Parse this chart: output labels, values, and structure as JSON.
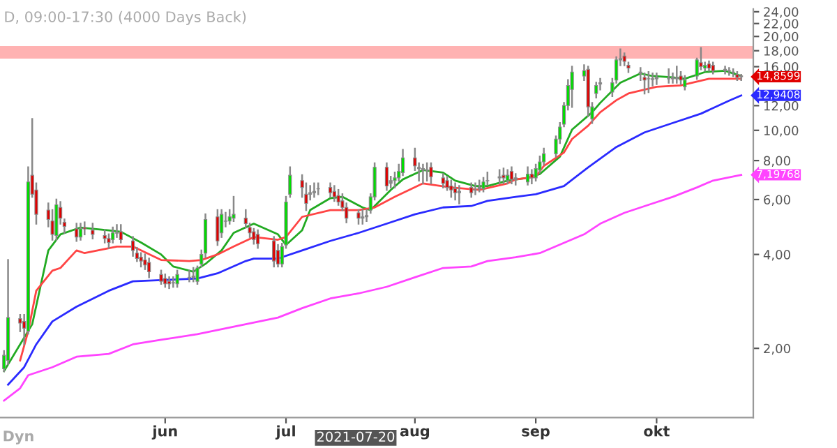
{
  "chart_data": {
    "type": "candlestick",
    "title": "D, 09:00-17:30 (4000 Days Back)",
    "log": true,
    "colors": [
      "#00dd00",
      "#00dd00",
      "#e00000",
      "#e00000",
      "#00dd00",
      "#e00000",
      "#e00000",
      "#e00000",
      "#e00000",
      "#00dd00",
      "#e00000",
      "#e00000",
      "#e00000",
      "#00dd00",
      "#e00000",
      "#e00000",
      "#e00000",
      "#e00000",
      "#00dd00",
      "#888888",
      "#e00000",
      "#e00000",
      "#e00000",
      "#e00000",
      "#e00000",
      "#e00000",
      "#e00000",
      "#e00000",
      "#e00000",
      "#888888",
      "#00dd00",
      "#888888",
      "#888888",
      "#00dd00",
      "#00dd00",
      "#00dd00",
      "#e00000",
      "#00dd00",
      "#888888",
      "#00dd00",
      "#00dd00",
      "#e00000",
      "#e00000",
      "#e00000",
      "#e00000",
      "#e00000",
      "#e00000",
      "#00dd00",
      "#00dd00",
      "#00dd00",
      "#e00000",
      "#e00000",
      "#888888",
      "#888888",
      "#888888",
      "#e00000",
      "#e00000",
      "#e00000",
      "#e00000",
      "#e00000",
      "#e00000",
      "#888888",
      "#888888",
      "#00dd00",
      "#00dd00",
      "#e00000",
      "#888888",
      "#00dd00",
      "#00dd00",
      "#00dd00",
      "#e00000",
      "#888888",
      "#888888",
      "#888888",
      "#e00000",
      "#e00000",
      "#e00000",
      "#e00000",
      "#e00000",
      "#888888",
      "#e00000",
      "#888888",
      "#888888",
      "#00dd00",
      "#888888",
      "#888888",
      "#e00000",
      "#00dd00",
      "#e00000",
      "#888888",
      "#00dd00",
      "#e00000",
      "#00dd00",
      "#00dd00",
      "#00dd00",
      "#00dd00",
      "#00dd00",
      "#00dd00",
      "#00dd00",
      "#00dd00",
      "#00dd00",
      "#e00000",
      "#00dd00",
      "#00dd00",
      "#888888",
      "#00dd00",
      "#00dd00",
      "#888888",
      "#e00000",
      "#e00000",
      "#888888",
      "#e00000",
      "#888888",
      "#888888",
      "#888888",
      "#888888",
      "#888888",
      "#888888",
      "#e00000",
      "#00dd00",
      "#00dd00",
      "#e00000",
      "#00dd00",
      "#e00000",
      "#e00000",
      "#888888",
      "#888888",
      "#888888",
      "#e00000",
      "#e00000"
    ],
    "xlim": [
      "2021-04-21",
      "2021-10-25"
    ],
    "x": [
      "2021-04-22",
      "2021-04-23",
      "2021-04-26",
      "2021-04-27",
      "2021-04-28",
      "2021-04-29",
      "2021-04-30",
      "2021-05-03",
      "2021-05-04",
      "2021-05-05",
      "2021-05-06",
      "2021-05-07",
      "2021-05-10",
      "2021-05-11",
      "2021-05-12",
      "2021-05-14",
      "2021-05-17",
      "2021-05-18",
      "2021-05-19",
      "2021-05-20",
      "2021-05-21",
      "2021-05-24",
      "2021-05-25",
      "2021-05-26",
      "2021-05-27",
      "2021-05-28",
      "2021-05-31",
      "2021-06-01",
      "2021-06-02",
      "2021-06-03",
      "2021-06-04",
      "2021-06-07",
      "2021-06-08",
      "2021-06-09",
      "2021-06-10",
      "2021-06-11",
      "2021-06-14",
      "2021-06-15",
      "2021-06-16",
      "2021-06-17",
      "2021-06-18",
      "2021-06-21",
      "2021-06-22",
      "2021-06-23",
      "2021-06-24",
      "2021-06-28",
      "2021-06-29",
      "2021-06-30",
      "2021-07-01",
      "2021-07-02",
      "2021-07-05",
      "2021-07-06",
      "2021-07-07",
      "2021-07-08",
      "2021-07-09",
      "2021-07-12",
      "2021-07-13",
      "2021-07-14",
      "2021-07-15",
      "2021-07-16",
      "2021-07-19",
      "2021-07-20",
      "2021-07-21",
      "2021-07-22",
      "2021-07-23",
      "2021-07-26",
      "2021-07-27",
      "2021-07-28",
      "2021-07-29",
      "2021-07-30",
      "2021-08-02",
      "2021-08-03",
      "2021-08-04",
      "2021-08-05",
      "2021-08-06",
      "2021-08-09",
      "2021-08-10",
      "2021-08-11",
      "2021-08-12",
      "2021-08-13",
      "2021-08-16",
      "2021-08-17",
      "2021-08-18",
      "2021-08-19",
      "2021-08-20",
      "2021-08-23",
      "2021-08-24",
      "2021-08-25",
      "2021-08-26",
      "2021-08-27",
      "2021-08-30",
      "2021-08-31",
      "2021-09-01",
      "2021-09-02",
      "2021-09-03",
      "2021-09-06",
      "2021-09-07",
      "2021-09-08",
      "2021-09-09",
      "2021-09-10",
      "2021-09-13",
      "2021-09-14",
      "2021-09-15",
      "2021-09-16",
      "2021-09-17",
      "2021-09-20",
      "2021-09-21",
      "2021-09-22",
      "2021-09-23",
      "2021-09-24",
      "2021-09-27",
      "2021-09-28",
      "2021-09-29",
      "2021-09-30",
      "2021-10-01",
      "2021-10-04",
      "2021-10-05",
      "2021-10-06",
      "2021-10-07",
      "2021-10-08",
      "2021-10-11",
      "2021-10-12",
      "2021-10-13",
      "2021-10-14",
      "2021-10-15",
      "2021-10-18",
      "2021-10-19",
      "2021-10-20",
      "2021-10-21",
      "2021-10-22"
    ],
    "ohlc": [
      [
        1.72,
        1.96,
        1.69,
        1.9
      ],
      [
        1.83,
        3.84,
        1.78,
        2.51
      ],
      [
        2.49,
        2.56,
        2.27,
        2.41
      ],
      [
        2.44,
        2.56,
        2.06,
        2.32
      ],
      [
        2.27,
        7.61,
        2.23,
        6.83
      ],
      [
        7.18,
        10.88,
        6.12,
        6.24
      ],
      [
        6.44,
        6.76,
        5.02,
        5.38
      ],
      [
        5.55,
        5.83,
        4.92,
        5.18
      ],
      [
        5.12,
        5.55,
        4.46,
        4.64
      ],
      [
        4.6,
        6.0,
        4.46,
        5.77
      ],
      [
        5.66,
        5.89,
        5.02,
        5.23
      ],
      [
        5.07,
        5.18,
        4.69,
        4.92
      ],
      [
        4.83,
        5.02,
        4.42,
        4.55
      ],
      [
        4.55,
        5.02,
        4.46,
        4.83
      ],
      [
        4.88,
        5.07,
        4.64,
        4.83
      ],
      [
        4.78,
        5.02,
        4.5,
        4.64
      ],
      [
        4.6,
        4.78,
        4.37,
        4.5
      ],
      [
        4.5,
        4.64,
        4.2,
        4.37
      ],
      [
        4.46,
        4.88,
        4.37,
        4.69
      ],
      [
        4.69,
        4.97,
        4.55,
        4.68
      ],
      [
        4.73,
        4.97,
        4.37,
        4.46
      ],
      [
        4.42,
        4.55,
        3.96,
        4.12
      ],
      [
        4.04,
        4.2,
        3.81,
        3.88
      ],
      [
        3.92,
        4.04,
        3.66,
        3.81
      ],
      [
        3.84,
        4.0,
        3.59,
        3.7
      ],
      [
        3.77,
        3.88,
        3.38,
        3.52
      ],
      [
        3.45,
        3.55,
        3.22,
        3.28
      ],
      [
        3.35,
        3.45,
        3.15,
        3.22
      ],
      [
        3.28,
        3.38,
        3.12,
        3.22
      ],
      [
        3.25,
        3.38,
        3.15,
        3.24
      ],
      [
        3.22,
        3.55,
        3.15,
        3.45
      ],
      [
        3.38,
        3.55,
        3.28,
        3.37
      ],
      [
        3.38,
        3.62,
        3.28,
        3.41
      ],
      [
        3.28,
        3.66,
        3.22,
        3.62
      ],
      [
        3.73,
        4.12,
        3.66,
        4.0
      ],
      [
        4.04,
        5.38,
        3.92,
        5.18
      ],
      [
        5.28,
        5.55,
        4.29,
        4.42
      ],
      [
        4.69,
        5.55,
        4.55,
        5.38
      ],
      [
        5.12,
        5.44,
        4.92,
        5.11
      ],
      [
        5.12,
        5.55,
        5.02,
        5.28
      ],
      [
        5.23,
        6.12,
        5.12,
        5.38
      ],
      [
        5.23,
        5.55,
        4.88,
        5.02
      ],
      [
        4.88,
        5.02,
        4.55,
        4.69
      ],
      [
        4.73,
        4.83,
        4.33,
        4.46
      ],
      [
        4.64,
        4.78,
        4.2,
        4.33
      ],
      [
        4.42,
        4.55,
        3.66,
        3.81
      ],
      [
        4.12,
        4.29,
        3.66,
        3.73
      ],
      [
        3.73,
        4.33,
        3.66,
        4.24
      ],
      [
        4.29,
        6.12,
        4.2,
        5.89
      ],
      [
        6.24,
        7.61,
        6.12,
        7.18
      ],
      [
        6.9,
        7.18,
        6.12,
        6.56
      ],
      [
        6.24,
        6.76,
        5.55,
        5.83
      ],
      [
        6.31,
        6.63,
        6.0,
        6.24
      ],
      [
        6.31,
        6.76,
        6.12,
        6.37
      ],
      [
        6.5,
        6.76,
        6.24,
        6.49
      ],
      [
        6.56,
        6.76,
        6.12,
        6.31
      ],
      [
        6.37,
        6.63,
        5.94,
        6.12
      ],
      [
        6.18,
        6.44,
        5.77,
        5.89
      ],
      [
        5.94,
        6.24,
        5.55,
        5.66
      ],
      [
        5.66,
        5.83,
        5.07,
        5.23
      ],
      [
        5.44,
        5.55,
        5.02,
        5.23
      ],
      [
        5.23,
        5.55,
        5.02,
        5.28
      ],
      [
        5.28,
        5.55,
        5.12,
        5.33
      ],
      [
        5.55,
        6.24,
        5.44,
        6.12
      ],
      [
        6.12,
        7.84,
        6.0,
        7.61
      ],
      [
        7.61,
        7.84,
        6.44,
        6.63
      ],
      [
        6.76,
        7.1,
        6.56,
        6.9
      ],
      [
        6.9,
        7.32,
        6.56,
        7.04
      ],
      [
        7.04,
        7.76,
        6.9,
        7.39
      ],
      [
        7.32,
        8.66,
        7.18,
        8.16
      ],
      [
        8.16,
        8.74,
        7.46,
        7.69
      ],
      [
        7.54,
        7.84,
        6.9,
        7.61
      ],
      [
        7.46,
        7.76,
        6.76,
        7.54
      ],
      [
        7.46,
        7.84,
        6.9,
        7.45
      ],
      [
        7.61,
        7.84,
        6.76,
        7.1
      ],
      [
        7.04,
        7.24,
        6.56,
        6.76
      ],
      [
        6.9,
        7.1,
        6.44,
        6.56
      ],
      [
        6.63,
        6.9,
        6.12,
        6.44
      ],
      [
        6.5,
        6.76,
        6.0,
        6.31
      ],
      [
        6.31,
        6.63,
        5.83,
        6.37
      ],
      [
        6.56,
        6.76,
        6.12,
        6.31
      ],
      [
        6.44,
        6.76,
        6.24,
        6.43
      ],
      [
        6.56,
        6.9,
        6.37,
        6.5
      ],
      [
        6.5,
        7.04,
        6.37,
        6.83
      ],
      [
        6.9,
        7.32,
        6.7,
        6.89
      ],
      [
        7.04,
        7.46,
        6.76,
        7.1
      ],
      [
        7.18,
        7.54,
        6.76,
        7.04
      ],
      [
        6.9,
        7.46,
        6.76,
        7.18
      ],
      [
        7.39,
        7.61,
        6.76,
        6.96
      ],
      [
        6.96,
        7.24,
        6.7,
        7.04
      ],
      [
        6.83,
        7.61,
        6.7,
        7.24
      ],
      [
        7.24,
        7.46,
        6.76,
        7.04
      ],
      [
        7.04,
        7.76,
        6.9,
        7.54
      ],
      [
        7.46,
        8.24,
        7.32,
        7.92
      ],
      [
        7.92,
        8.74,
        7.76,
        8.41
      ],
      [
        8.41,
        9.56,
        8.24,
        9.38
      ],
      [
        9.38,
        10.56,
        9.1,
        10.25
      ],
      [
        10.46,
        12.25,
        10.3,
        12.01
      ],
      [
        12.01,
        14.49,
        11.66,
        13.93
      ],
      [
        13.52,
        16.0,
        11.89,
        15.38
      ],
      [
        14.93,
        16.16,
        14.49,
        15.53
      ],
      [
        15.69,
        16.0,
        11.1,
        11.89
      ],
      [
        10.88,
        12.25,
        10.56,
        11.89
      ],
      [
        13.13,
        14.21,
        12.74,
        13.93
      ],
      [
        14.07,
        14.63,
        13.52,
        14.21
      ],
      [
        13.26,
        14.63,
        12.87,
        14.21
      ],
      [
        14.49,
        17.15,
        14.21,
        16.82
      ],
      [
        16.82,
        18.19,
        16.16,
        16.98
      ],
      [
        17.31,
        17.66,
        16.16,
        16.64
      ],
      [
        16.16,
        16.48,
        15.38,
        15.84
      ],
      [
        15.38,
        15.84,
        14.49,
        15.22
      ],
      [
        14.78,
        15.22,
        13.13,
        14.49
      ],
      [
        14.63,
        15.38,
        13.26,
        14.62
      ],
      [
        14.63,
        15.22,
        13.93,
        14.56
      ],
      [
        14.63,
        15.22,
        14.07,
        14.78
      ],
      [
        14.63,
        15.69,
        14.21,
        14.64
      ],
      [
        14.63,
        15.22,
        14.21,
        14.78
      ],
      [
        14.63,
        16.0,
        14.21,
        14.78
      ],
      [
        14.93,
        15.38,
        14.07,
        14.49
      ],
      [
        13.79,
        14.93,
        13.52,
        14.49
      ],
      [
        14.93,
        16.98,
        14.63,
        16.82
      ],
      [
        16.48,
        18.38,
        15.69,
        16.0
      ],
      [
        15.84,
        16.48,
        15.53,
        16.16
      ],
      [
        16.32,
        16.64,
        15.53,
        15.84
      ],
      [
        16.16,
        16.48,
        15.22,
        15.53
      ],
      [
        15.53,
        16.0,
        15.22,
        15.69
      ],
      [
        15.53,
        15.84,
        15.07,
        15.52
      ],
      [
        15.38,
        15.69,
        14.93,
        15.37
      ],
      [
        15.08,
        15.38,
        14.49,
        14.78
      ],
      [
        14.95,
        15.07,
        14.49,
        14.8599
      ]
    ],
    "series": [
      {
        "type": "line",
        "color": "#22aa22",
        "x": [
          "2021-04-22",
          "2021-04-29",
          "2021-05-03",
          "2021-05-06",
          "2021-05-11",
          "2021-05-18",
          "2021-05-21",
          "2021-05-26",
          "2021-05-31",
          "2021-06-03",
          "2021-06-08",
          "2021-06-11",
          "2021-06-15",
          "2021-06-18",
          "2021-06-23",
          "2021-06-29",
          "2021-07-01",
          "2021-07-05",
          "2021-07-07",
          "2021-07-12",
          "2021-07-15",
          "2021-07-20",
          "2021-07-22",
          "2021-07-27",
          "2021-07-30",
          "2021-08-04",
          "2021-08-09",
          "2021-08-12",
          "2021-08-17",
          "2021-08-20",
          "2021-08-25",
          "2021-08-30",
          "2021-09-02",
          "2021-09-07",
          "2021-09-10",
          "2021-09-15",
          "2021-09-17",
          "2021-09-22",
          "2021-09-27",
          "2021-09-30",
          "2021-10-05",
          "2021-10-08",
          "2021-10-13",
          "2021-10-18",
          "2021-10-22"
        ],
        "values": [
          1.69,
          2.39,
          4.12,
          4.64,
          4.88,
          4.78,
          4.73,
          4.37,
          4.0,
          3.66,
          3.52,
          3.73,
          4.12,
          4.69,
          5.02,
          4.64,
          4.29,
          4.78,
          5.55,
          6.06,
          6.12,
          5.66,
          5.55,
          6.44,
          6.96,
          7.46,
          7.32,
          6.9,
          6.63,
          6.63,
          6.9,
          7.04,
          7.24,
          8.24,
          10.05,
          11.43,
          12.25,
          14.21,
          15.22,
          14.93,
          14.78,
          14.63,
          15.38,
          15.53,
          14.93
        ]
      },
      {
        "type": "line",
        "color": "#ff4444",
        "x": [
          "2021-04-26",
          "2021-04-28",
          "2021-04-30",
          "2021-05-04",
          "2021-05-06",
          "2021-05-10",
          "2021-05-12",
          "2021-05-20",
          "2021-05-24",
          "2021-05-31",
          "2021-06-07",
          "2021-06-10",
          "2021-06-14",
          "2021-06-18",
          "2021-06-23",
          "2021-06-29",
          "2021-07-01",
          "2021-07-05",
          "2021-07-12",
          "2021-07-19",
          "2021-07-23",
          "2021-07-28",
          "2021-08-04",
          "2021-08-11",
          "2021-08-18",
          "2021-08-25",
          "2021-08-27",
          "2021-09-01",
          "2021-09-03",
          "2021-09-08",
          "2021-09-10",
          "2021-09-14",
          "2021-09-17",
          "2021-09-21",
          "2021-09-24",
          "2021-10-01",
          "2021-10-07",
          "2021-10-14",
          "2021-10-22"
        ],
        "values": [
          1.83,
          2.27,
          3.06,
          3.55,
          3.62,
          4.12,
          4.04,
          4.24,
          4.24,
          3.84,
          3.81,
          3.84,
          4.0,
          4.24,
          4.55,
          4.46,
          4.55,
          5.28,
          5.55,
          5.55,
          5.66,
          6.12,
          6.76,
          6.56,
          6.44,
          6.76,
          6.96,
          7.1,
          7.69,
          8.49,
          9.38,
          10.35,
          11.43,
          12.49,
          13.13,
          13.79,
          13.93,
          14.63,
          14.63
        ]
      },
      {
        "type": "line",
        "color": "#2a2aff",
        "x": [
          "2021-04-23",
          "2021-04-27",
          "2021-04-30",
          "2021-05-04",
          "2021-05-10",
          "2021-05-18",
          "2021-05-24",
          "2021-05-31",
          "2021-06-09",
          "2021-06-14",
          "2021-06-21",
          "2021-06-23",
          "2021-06-29",
          "2021-07-05",
          "2021-07-12",
          "2021-07-19",
          "2021-07-26",
          "2021-08-02",
          "2021-08-09",
          "2021-08-16",
          "2021-08-20",
          "2021-08-27",
          "2021-09-01",
          "2021-09-08",
          "2021-09-14",
          "2021-09-21",
          "2021-09-28",
          "2021-10-05",
          "2021-10-12",
          "2021-10-19",
          "2021-10-22"
        ],
        "values": [
          1.53,
          1.74,
          2.06,
          2.44,
          2.72,
          3.06,
          3.28,
          3.31,
          3.35,
          3.48,
          3.81,
          3.88,
          3.88,
          4.12,
          4.42,
          4.69,
          5.02,
          5.38,
          5.66,
          5.72,
          5.94,
          6.12,
          6.24,
          6.63,
          7.61,
          8.84,
          9.85,
          10.56,
          11.31,
          12.45,
          12.9408
        ],
        "value_labels": [
          null,
          null,
          null,
          null,
          null,
          null,
          null,
          null,
          null,
          null,
          null,
          null,
          null,
          null,
          null,
          null,
          null,
          null,
          null,
          null,
          null,
          null,
          null,
          null,
          null,
          null,
          null,
          null,
          null,
          null,
          "12,9408"
        ]
      },
      {
        "type": "line",
        "color": "#ff44ff",
        "x": [
          "2021-04-22",
          "2021-04-26",
          "2021-04-28",
          "2021-05-04",
          "2021-05-10",
          "2021-05-18",
          "2021-05-24",
          "2021-05-31",
          "2021-06-09",
          "2021-06-21",
          "2021-06-29",
          "2021-07-05",
          "2021-07-12",
          "2021-07-19",
          "2021-07-26",
          "2021-08-02",
          "2021-08-09",
          "2021-08-16",
          "2021-08-20",
          "2021-08-27",
          "2021-09-02",
          "2021-09-13",
          "2021-09-17",
          "2021-09-23",
          "2021-09-29",
          "2021-10-05",
          "2021-10-11",
          "2021-10-15",
          "2021-10-22"
        ],
        "values": [
          1.36,
          1.49,
          1.64,
          1.74,
          1.88,
          1.92,
          2.06,
          2.13,
          2.22,
          2.39,
          2.51,
          2.69,
          2.89,
          3.0,
          3.15,
          3.38,
          3.62,
          3.66,
          3.81,
          3.92,
          4.04,
          4.64,
          5.02,
          5.44,
          5.77,
          6.12,
          6.56,
          6.9,
          7.19768
        ],
        "value_labels": [
          null,
          null,
          null,
          null,
          null,
          null,
          null,
          null,
          null,
          null,
          null,
          null,
          null,
          null,
          null,
          null,
          null,
          null,
          null,
          null,
          null,
          null,
          null,
          null,
          null,
          null,
          null,
          null,
          "7,19768"
        ]
      }
    ],
    "ylim": [
      1.2,
      24.5
    ],
    "yticks": [
      {
        "value": 2,
        "label": "2,00"
      },
      {
        "value": 4,
        "label": "4,00"
      },
      {
        "value": 6,
        "label": "6,00"
      },
      {
        "value": 8,
        "label": "8,00"
      },
      {
        "value": 10,
        "label": "10,00"
      },
      {
        "value": 12,
        "label": "12,00"
      },
      {
        "value": 16,
        "label": "16,00"
      },
      {
        "value": 18,
        "label": "18,00"
      },
      {
        "value": 20,
        "label": "20,00"
      },
      {
        "value": 22,
        "label": "22,00"
      },
      {
        "value": 24,
        "label": "24,00"
      }
    ],
    "xticks": [
      {
        "value": "2021-06-01",
        "label": "jun"
      },
      {
        "value": "2021-07-01",
        "label": "jul"
      },
      {
        "value": "2021-08-02",
        "label": "aug"
      },
      {
        "value": "2021-09-01",
        "label": "sep"
      },
      {
        "value": "2021-10-01",
        "label": "okt"
      }
    ],
    "bands": [
      {
        "axis": "y",
        "from": 17.1,
        "to": 18.5,
        "color": "#ff8080"
      }
    ],
    "annotations": [
      {
        "text": "14,8599",
        "x": "2021-10-22",
        "y": 14.8599
      },
      "2021-07-20",
      "Dyn"
    ]
  }
}
